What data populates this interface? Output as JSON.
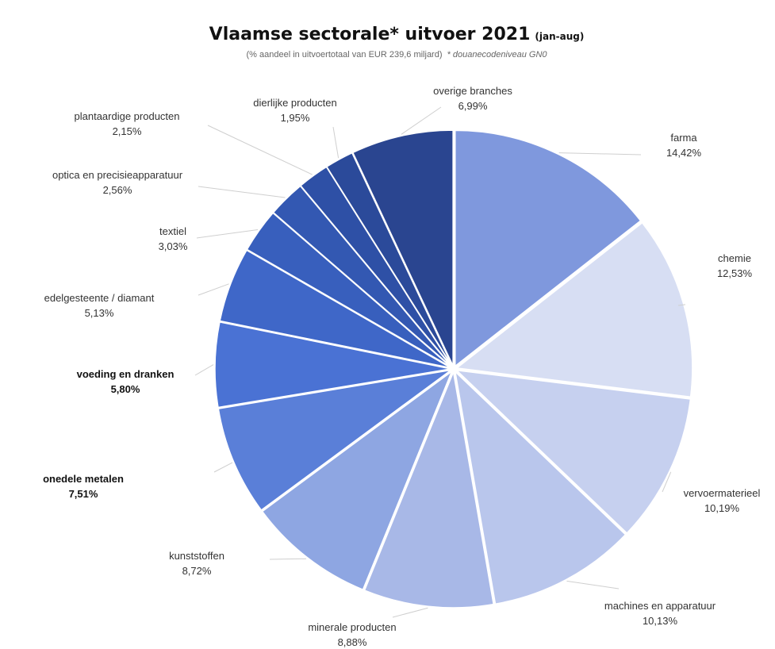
{
  "chart_data": {
    "type": "pie",
    "title": "Vlaamse sectorale* uitvoer 2021",
    "title_suffix": "(jan-aug)",
    "subtitle": "(% aandeel in uitvoertotaal van EUR 239,6 miljard)",
    "subtitle_note": "* douanecodeniveau GN0",
    "slices": [
      {
        "label": "farma",
        "value": 14.42,
        "value_label": "14,42%",
        "color": "#7f98dd",
        "bold": false
      },
      {
        "label": "chemie",
        "value": 12.53,
        "value_label": "12,53%",
        "color": "#d7def3",
        "bold": false
      },
      {
        "label": "vervoermaterieel",
        "value": 10.19,
        "value_label": "10,19%",
        "color": "#c6d0ef",
        "bold": false
      },
      {
        "label": "machines en apparatuur",
        "value": 10.13,
        "value_label": "10,13%",
        "color": "#b9c6ec",
        "bold": false
      },
      {
        "label": "minerale producten",
        "value": 8.88,
        "value_label": "8,88%",
        "color": "#a8b8e7",
        "bold": false
      },
      {
        "label": "kunststoffen",
        "value": 8.72,
        "value_label": "8,72%",
        "color": "#8ea6e2",
        "bold": false
      },
      {
        "label": "onedele metalen",
        "value": 7.51,
        "value_label": "7,51%",
        "color": "#5a7fd8",
        "bold": true
      },
      {
        "label": "voeding en dranken",
        "value": 5.8,
        "value_label": "5,80%",
        "color": "#4a72d4",
        "bold": true
      },
      {
        "label": "edelgesteente / diamant",
        "value": 5.13,
        "value_label": "5,13%",
        "color": "#3f67c8",
        "bold": false
      },
      {
        "label": "textiel",
        "value": 3.03,
        "value_label": "3,03%",
        "color": "#385fbd",
        "bold": false
      },
      {
        "label": "optica en precisieapparatuur",
        "value": 2.56,
        "value_label": "2,56%",
        "color": "#3358b2",
        "bold": false
      },
      {
        "label": "plantaardige producten",
        "value": 2.15,
        "value_label": "2,15%",
        "color": "#2e50a6",
        "bold": false
      },
      {
        "label": "dierlijke producten",
        "value": 1.95,
        "value_label": "1,95%",
        "color": "#2b4a9a",
        "bold": false
      },
      {
        "label": "overige branches",
        "value": 6.99,
        "value_label": "6,99%",
        "color": "#2a4590",
        "bold": false
      }
    ]
  }
}
